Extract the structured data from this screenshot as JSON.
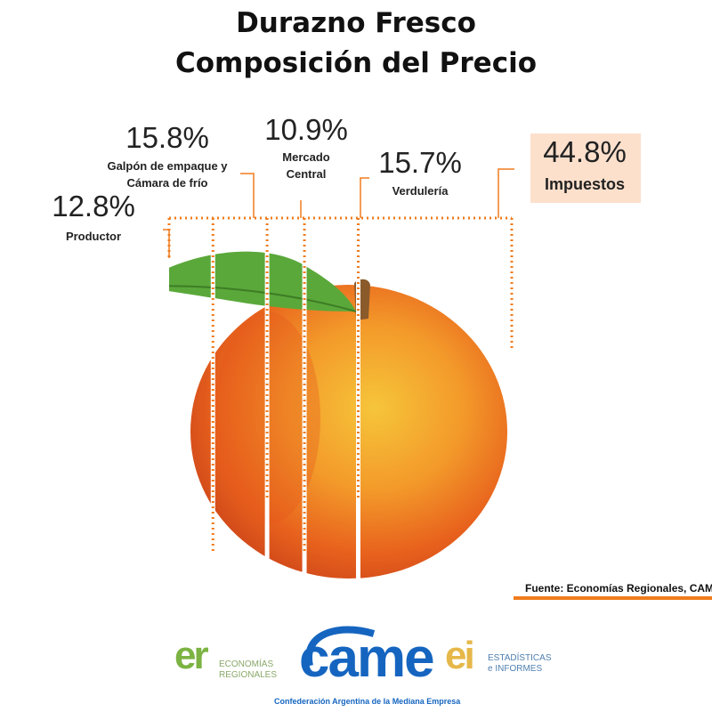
{
  "chart_data": {
    "type": "composition",
    "title": "Durazno Fresco",
    "subtitle": "Composición del Precio",
    "categories": [
      "Productor",
      "Galpón de empaque y Cámara de frío",
      "Mercado Central",
      "Verdulería",
      "Impuestos"
    ],
    "values": [
      12.8,
      15.8,
      10.9,
      15.7,
      44.8
    ],
    "value_labels": [
      "12.8%",
      "15.8%",
      "10.9%",
      "15.7%",
      "44.8%"
    ],
    "color": "#f07c1e",
    "highlight_color": "#fde0cc"
  },
  "footer": {
    "source": "Fuente: Economías Regionales, CAME",
    "logos": [
      {
        "mark": "er",
        "text": "ECONOMÍAS REGIONALES"
      },
      {
        "mark": "came",
        "text": "Confederación Argentina de la Mediana Empresa"
      },
      {
        "mark": "ei",
        "text": "ESTADÍSTICAS e INFORMES"
      }
    ]
  }
}
